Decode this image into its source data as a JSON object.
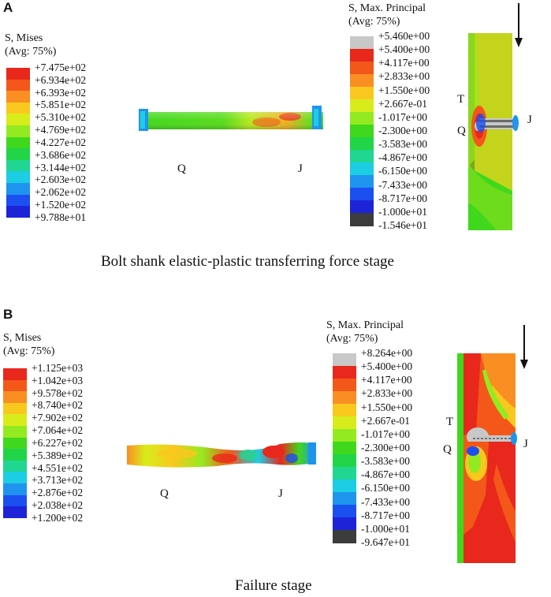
{
  "panel_a": {
    "letter": "A",
    "mises_legend": {
      "title_line1": "S, Mises",
      "title_line2": "(Avg: 75%)",
      "values": [
        "+7.475e+02",
        "+6.934e+02",
        "+6.393e+02",
        "+5.851e+02",
        "+5.310e+02",
        "+4.769e+02",
        "+4.227e+02",
        "+3.686e+02",
        "+3.144e+02",
        "+2.603e+02",
        "+2.062e+02",
        "+1.520e+02",
        "+9.788e+01"
      ],
      "colors": [
        "#e8281c",
        "#f3571a",
        "#f98e22",
        "#f9c81e",
        "#d8ec1c",
        "#94ea21",
        "#40d81c",
        "#22d447",
        "#20d690",
        "#1ccde3",
        "#1f94ee",
        "#1c4ff0",
        "#1d24d8"
      ]
    },
    "principal_legend": {
      "title_line1": "S, Max. Principal",
      "title_line2": "(Avg: 75%)",
      "values": [
        "+5.460e+00",
        "+5.400e+00",
        "+4.117e+00",
        "+2.833e+00",
        "+1.550e+00",
        "+2.667e-01",
        "-1.017e+00",
        "-2.300e+00",
        "-3.583e+00",
        "-4.867e+00",
        "-6.150e+00",
        "-7.433e+00",
        "-8.717e+00",
        "-1.000e+01",
        "-1.546e+01"
      ],
      "colors": [
        "#c8c8c8",
        "#e8281c",
        "#f3571a",
        "#f98e22",
        "#f9c81e",
        "#d8ec1c",
        "#94ea21",
        "#40d81c",
        "#22d447",
        "#20d690",
        "#1ccde3",
        "#1f94ee",
        "#1c4ff0",
        "#1d24d8",
        "#3c3c3c"
      ]
    },
    "bolt_labels": {
      "left": "Q",
      "right": "J"
    },
    "plate_labels": {
      "t": "T",
      "q": "Q",
      "j": "J"
    },
    "caption": "Bolt shank elastic-plastic transferring force stage"
  },
  "panel_b": {
    "letter": "B",
    "mises_legend": {
      "title_line1": "S, Mises",
      "title_line2": "(Avg: 75%)",
      "values": [
        "+1.125e+03",
        "+1.042e+03",
        "+9.578e+02",
        "+8.740e+02",
        "+7.902e+02",
        "+7.064e+02",
        "+6.227e+02",
        "+5.389e+02",
        "+4.551e+02",
        "+3.713e+02",
        "+2.876e+02",
        "+2.038e+02",
        "+1.200e+02"
      ],
      "colors": [
        "#e8281c",
        "#f3571a",
        "#f98e22",
        "#f9c81e",
        "#d8ec1c",
        "#94ea21",
        "#40d81c",
        "#22d447",
        "#20d690",
        "#1ccde3",
        "#1f94ee",
        "#1c4ff0",
        "#1d24d8"
      ]
    },
    "principal_legend": {
      "title_line1": "S, Max. Principal",
      "title_line2": "(Avg: 75%)",
      "values": [
        "+8.264e+00",
        "+5.400e+00",
        "+4.117e+00",
        "+2.833e+00",
        "+1.550e+00",
        "+2.667e-01",
        "-1.017e+00",
        "-2.300e+00",
        "-3.583e+00",
        "-4.867e+00",
        "-6.150e+00",
        "-7.433e+00",
        "-8.717e+00",
        "-1.000e+01",
        "-9.647e+01"
      ],
      "colors": [
        "#c8c8c8",
        "#e8281c",
        "#f3571a",
        "#f98e22",
        "#f9c81e",
        "#d8ec1c",
        "#94ea21",
        "#40d81c",
        "#22d447",
        "#20d690",
        "#1ccde3",
        "#1f94ee",
        "#1c4ff0",
        "#1d24d8",
        "#3c3c3c"
      ]
    },
    "bolt_labels": {
      "left": "Q",
      "right": "J"
    },
    "plate_labels": {
      "t": "T",
      "q": "Q",
      "j": "J"
    },
    "caption": "Failure stage"
  }
}
